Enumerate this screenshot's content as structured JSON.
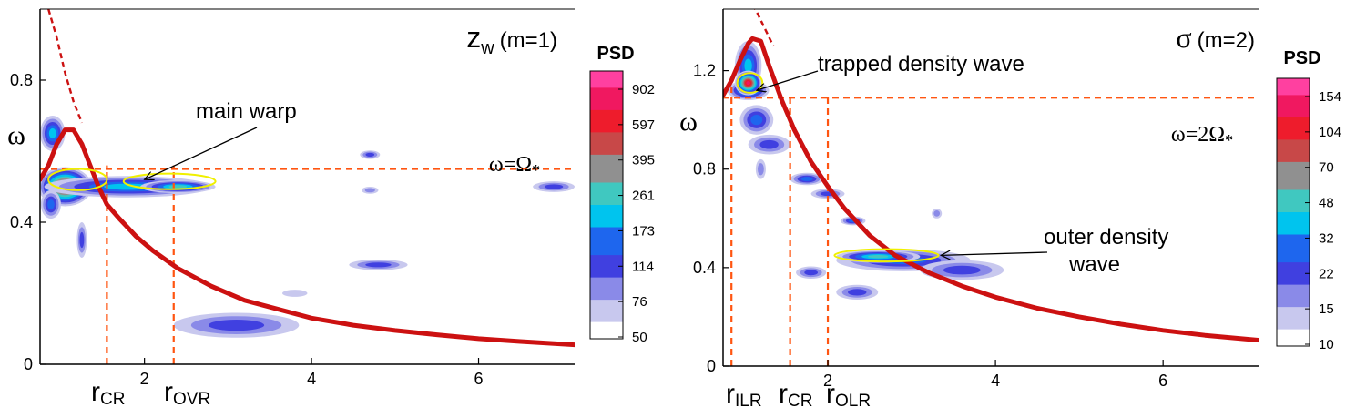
{
  "colors": {
    "ridge": "#cc1111",
    "guide_lines": "#ff5511",
    "ellipse": "#f0f000",
    "colorbar": [
      "#ffffff",
      "#c8c8ee",
      "#8a8ae8",
      "#4040e0",
      "#1e66ee",
      "#00c4ee",
      "#40c8c0",
      "#909090",
      "#c84848",
      "#ee1c2c",
      "#f01860",
      "#ff40a0"
    ]
  },
  "chart_data": [
    {
      "type": "heatmap",
      "title": "z",
      "title_sub": "w",
      "title_suffix": "(m=1)",
      "xlabel": "",
      "ylabel": "ω",
      "xlim": [
        0.75,
        7.15
      ],
      "ylim": [
        0,
        1.0
      ],
      "x_ticks": [
        "2",
        "4",
        "6"
      ],
      "x_tick_values": [
        2,
        4,
        6
      ],
      "y_ticks": [
        "0",
        "0.4",
        "0.8"
      ],
      "y_tick_values": [
        0,
        0.4,
        0.8
      ],
      "colorbar": {
        "label": "PSD",
        "levels": [
          "902",
          "597",
          "395",
          "261",
          "173",
          "114",
          "76",
          "50"
        ]
      },
      "horizontal_line": {
        "y": 0.55,
        "label_main": "ω=Ω",
        "label_sub": "*"
      },
      "vertical_lines": [
        {
          "x": 1.55,
          "label_main": "r",
          "label_sub": "CR"
        },
        {
          "x": 2.35,
          "label_main": "r",
          "label_sub": "OVR"
        }
      ],
      "annotations": [
        {
          "text": "main warp",
          "x": 2.4,
          "y": 0.7,
          "arrow_to": [
            2.0,
            0.52
          ]
        }
      ],
      "ridge": {
        "x": [
          0.75,
          0.85,
          0.95,
          1.05,
          1.15,
          1.25,
          1.35,
          1.45,
          1.55,
          1.7,
          1.9,
          2.1,
          2.4,
          2.8,
          3.2,
          3.6,
          4.0,
          4.5,
          5.0,
          5.5,
          6.0,
          6.5,
          7.15
        ],
        "y": [
          0.52,
          0.56,
          0.62,
          0.66,
          0.66,
          0.62,
          0.56,
          0.5,
          0.45,
          0.41,
          0.36,
          0.32,
          0.27,
          0.22,
          0.18,
          0.155,
          0.13,
          0.11,
          0.095,
          0.083,
          0.072,
          0.064,
          0.055
        ]
      },
      "ridge_dashed": {
        "x": [
          0.85,
          0.95,
          1.05,
          1.15,
          1.25
        ],
        "y": [
          1.0,
          0.92,
          0.82,
          0.74,
          0.68
        ]
      },
      "blobs": [
        {
          "x": 1.05,
          "y": 0.5,
          "rx": 0.32,
          "ry": 0.055,
          "level": 10
        },
        {
          "x": 1.8,
          "y": 0.5,
          "rx": 1.0,
          "ry": 0.03,
          "level": 5
        },
        {
          "x": 2.4,
          "y": 0.5,
          "rx": 0.45,
          "ry": 0.018,
          "level": 6
        },
        {
          "x": 0.9,
          "y": 0.65,
          "rx": 0.15,
          "ry": 0.05,
          "level": 5
        },
        {
          "x": 0.88,
          "y": 0.45,
          "rx": 0.12,
          "ry": 0.04,
          "level": 4
        },
        {
          "x": 1.25,
          "y": 0.35,
          "rx": 0.06,
          "ry": 0.05,
          "level": 3
        },
        {
          "x": 4.7,
          "y": 0.59,
          "rx": 0.12,
          "ry": 0.012,
          "level": 3
        },
        {
          "x": 4.7,
          "y": 0.49,
          "rx": 0.1,
          "ry": 0.01,
          "level": 2
        },
        {
          "x": 4.8,
          "y": 0.28,
          "rx": 0.35,
          "ry": 0.015,
          "level": 3
        },
        {
          "x": 3.1,
          "y": 0.11,
          "rx": 0.75,
          "ry": 0.035,
          "level": 3
        },
        {
          "x": 6.9,
          "y": 0.5,
          "rx": 0.25,
          "ry": 0.015,
          "level": 3
        },
        {
          "x": 3.8,
          "y": 0.2,
          "rx": 0.15,
          "ry": 0.01,
          "level": 1
        }
      ],
      "ellipses": [
        {
          "x": 1.2,
          "y": 0.52,
          "rx": 0.35,
          "ry": 0.03
        },
        {
          "x": 2.3,
          "y": 0.515,
          "rx": 0.55,
          "ry": 0.022
        }
      ]
    },
    {
      "type": "heatmap",
      "title": "σ",
      "title_sub": "",
      "title_suffix": "(m=2)",
      "xlabel": "",
      "ylabel": "ω",
      "xlim": [
        0.75,
        7.15
      ],
      "ylim": [
        0,
        1.45
      ],
      "x_ticks": [
        "2",
        "4",
        "6"
      ],
      "x_tick_values": [
        2,
        4,
        6
      ],
      "y_ticks": [
        "0",
        "0.4",
        "0.8",
        "1.2"
      ],
      "y_tick_values": [
        0,
        0.4,
        0.8,
        1.2
      ],
      "colorbar": {
        "label": "PSD",
        "levels": [
          "154",
          "104",
          "70",
          "48",
          "32",
          "22",
          "15",
          "10"
        ]
      },
      "horizontal_line": {
        "y": 1.09,
        "label_main": "ω=2Ω",
        "label_sub": "*"
      },
      "vertical_lines": [
        {
          "x": 0.85,
          "label_main": "r",
          "label_sub": "ILR"
        },
        {
          "x": 1.55,
          "label_main": "r",
          "label_sub": "CR"
        },
        {
          "x": 2.0,
          "label_main": "r",
          "label_sub": "OLR"
        }
      ],
      "annotations": [
        {
          "text": "trapped density wave",
          "x": 1.55,
          "y": 1.25,
          "arrow_to": [
            1.15,
            1.12
          ]
        },
        {
          "text": "outer density",
          "text2": "wave",
          "x": 4.5,
          "y": 0.5,
          "arrow_to": [
            3.35,
            0.45
          ]
        }
      ],
      "ridge": {
        "x": [
          0.75,
          0.85,
          0.95,
          1.05,
          1.1,
          1.2,
          1.3,
          1.45,
          1.6,
          1.8,
          2.0,
          2.2,
          2.5,
          2.8,
          3.2,
          3.6,
          4.0,
          4.5,
          5.0,
          5.5,
          6.0,
          6.5,
          7.15
        ],
        "y": [
          1.1,
          1.16,
          1.24,
          1.31,
          1.33,
          1.32,
          1.22,
          1.08,
          0.96,
          0.83,
          0.73,
          0.64,
          0.53,
          0.45,
          0.38,
          0.325,
          0.28,
          0.235,
          0.2,
          0.17,
          0.145,
          0.125,
          0.105
        ]
      },
      "ridge_dashed": {
        "x": [
          1.05,
          1.15,
          1.25,
          1.35
        ],
        "y": [
          1.5,
          1.44,
          1.37,
          1.3
        ]
      },
      "blobs": [
        {
          "x": 1.05,
          "y": 1.22,
          "rx": 0.16,
          "ry": 0.1,
          "level": 5
        },
        {
          "x": 1.05,
          "y": 1.12,
          "rx": 0.25,
          "ry": 0.04,
          "level": 6
        },
        {
          "x": 1.05,
          "y": 1.15,
          "rx": 0.16,
          "ry": 0.05,
          "level": 10
        },
        {
          "x": 1.15,
          "y": 1.0,
          "rx": 0.2,
          "ry": 0.06,
          "level": 4
        },
        {
          "x": 1.3,
          "y": 0.9,
          "rx": 0.25,
          "ry": 0.04,
          "level": 3
        },
        {
          "x": 1.75,
          "y": 0.76,
          "rx": 0.2,
          "ry": 0.025,
          "level": 4
        },
        {
          "x": 2.0,
          "y": 0.7,
          "rx": 0.2,
          "ry": 0.02,
          "level": 3
        },
        {
          "x": 2.3,
          "y": 0.59,
          "rx": 0.15,
          "ry": 0.018,
          "level": 4
        },
        {
          "x": 2.9,
          "y": 0.43,
          "rx": 0.8,
          "ry": 0.045,
          "level": 4
        },
        {
          "x": 3.6,
          "y": 0.39,
          "rx": 0.5,
          "ry": 0.04,
          "level": 3
        },
        {
          "x": 2.6,
          "y": 0.445,
          "rx": 0.5,
          "ry": 0.025,
          "level": 6
        },
        {
          "x": 1.8,
          "y": 0.38,
          "rx": 0.18,
          "ry": 0.025,
          "level": 3
        },
        {
          "x": 2.35,
          "y": 0.3,
          "rx": 0.25,
          "ry": 0.03,
          "level": 3
        },
        {
          "x": 1.2,
          "y": 0.8,
          "rx": 0.06,
          "ry": 0.04,
          "level": 2
        },
        {
          "x": 3.3,
          "y": 0.62,
          "rx": 0.06,
          "ry": 0.02,
          "level": 2
        }
      ],
      "ellipses": [
        {
          "x": 1.07,
          "y": 1.15,
          "rx": 0.15,
          "ry": 0.04
        },
        {
          "x": 2.7,
          "y": 0.45,
          "rx": 0.62,
          "ry": 0.025
        }
      ]
    }
  ]
}
